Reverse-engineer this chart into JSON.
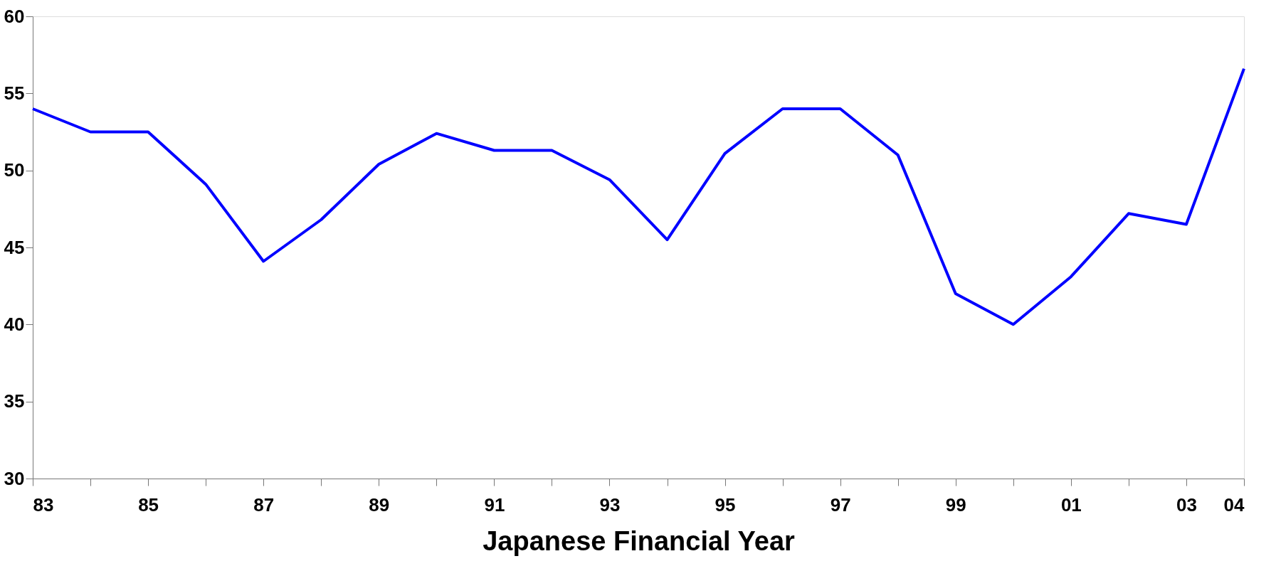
{
  "chart_data": {
    "type": "line",
    "xlabel": "Japanese Financial Year",
    "categories": [
      "83",
      null,
      "85",
      null,
      "87",
      null,
      "89",
      null,
      "91",
      null,
      "93",
      null,
      "95",
      null,
      "97",
      null,
      "99",
      null,
      "01",
      null,
      "03",
      "04"
    ],
    "series": [
      {
        "color": "#0000ff",
        "values": [
          54.0,
          52.5,
          52.5,
          49.1,
          44.1,
          46.8,
          50.4,
          52.4,
          51.3,
          51.3,
          49.4,
          45.5,
          51.1,
          54.0,
          54.0,
          51.0,
          42.0,
          40.0,
          43.1,
          47.2,
          46.5,
          56.6
        ]
      }
    ],
    "ylim": [
      30,
      60
    ],
    "yticks": [
      30,
      35,
      40,
      45,
      50,
      55,
      60
    ],
    "grid": false,
    "marker": "none",
    "line_style": "solid"
  }
}
